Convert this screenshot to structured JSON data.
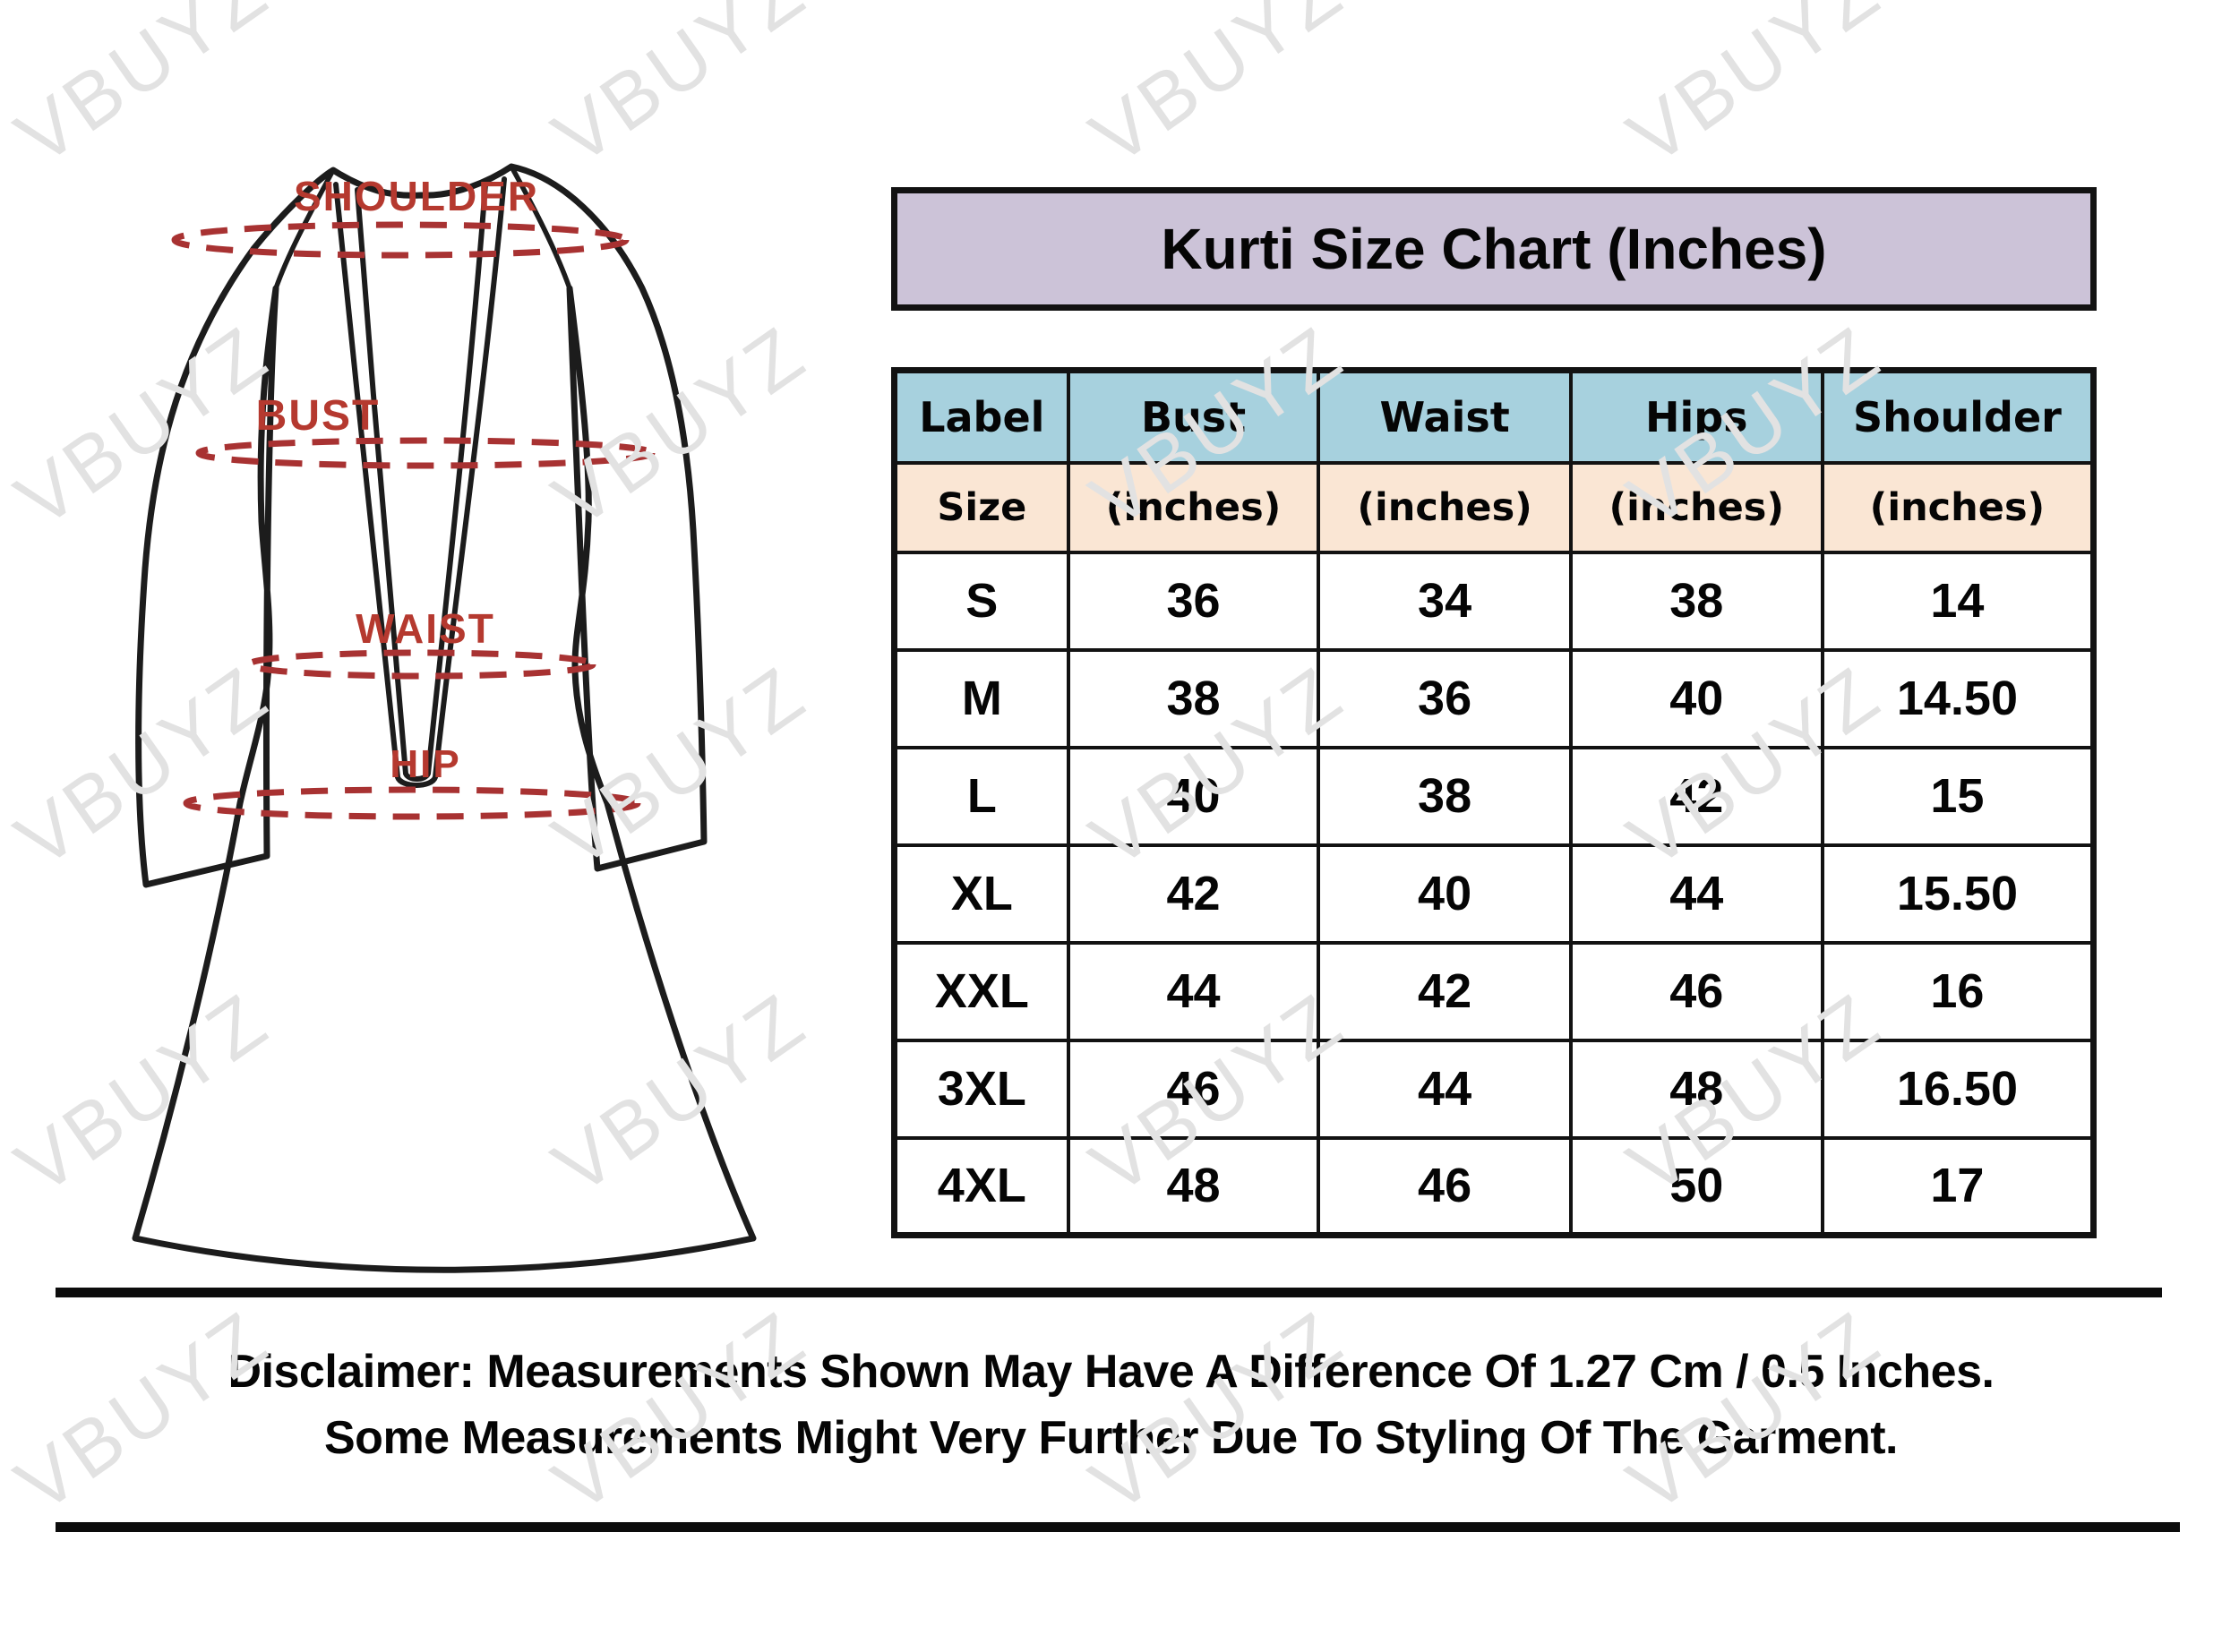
{
  "title": "Kurti Size Chart (Inches)",
  "watermark": {
    "text": "VBUYZ"
  },
  "diagram": {
    "shoulder": "SHOULDER",
    "bust": "BUST",
    "waist": "WAIST",
    "hip": "HIP"
  },
  "table": {
    "columns": [
      "Label",
      "Bust",
      "Waist",
      "Hips",
      "Shoulder"
    ],
    "subheader": [
      "Size",
      "(inches)",
      "(inches)",
      "(inches)",
      "(inches)"
    ],
    "rows": [
      [
        "S",
        "36",
        "34",
        "38",
        "14"
      ],
      [
        "M",
        "38",
        "36",
        "40",
        "14.50"
      ],
      [
        "L",
        "40",
        "38",
        "42",
        "15"
      ],
      [
        "XL",
        "42",
        "40",
        "44",
        "15.50"
      ],
      [
        "XXL",
        "44",
        "42",
        "46",
        "16"
      ],
      [
        "3XL",
        "46",
        "44",
        "48",
        "16.50"
      ],
      [
        "4XL",
        "48",
        "46",
        "50",
        "17"
      ]
    ]
  },
  "disclaimer": {
    "line1": "Disclaimer: Measurements Shown May Have A Difference Of 1.27 Cm / 0.5 Inches.",
    "line2": "Some Measurements Might Very Further Due To Styling Of The Garment."
  },
  "colors": {
    "title_bg": "#ccc3d8",
    "header_bg": "#a7d1de",
    "subheader_bg": "#fae6d4",
    "border": "#121212",
    "label_red": "#b5392f",
    "dash_red": "#a83232",
    "watermark": "#e2e2e2"
  }
}
